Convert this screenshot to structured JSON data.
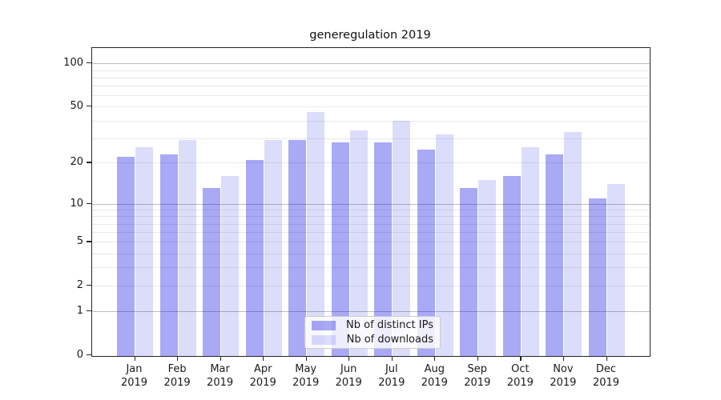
{
  "chart_data": {
    "type": "bar",
    "title": "generegulation 2019",
    "categories": [
      "Jan",
      "Feb",
      "Mar",
      "Apr",
      "May",
      "Jun",
      "Jul",
      "Aug",
      "Sep",
      "Oct",
      "Nov",
      "Dec"
    ],
    "category_year": "2019",
    "series": [
      {
        "name": "Nb of distinct IPs",
        "color": "rgba(10,10,230,0.35)",
        "values": [
          22,
          23,
          13,
          21,
          29,
          28,
          28,
          25,
          13,
          16,
          23,
          11
        ]
      },
      {
        "name": "Nb of downloads",
        "color": "rgba(10,10,230,0.14)",
        "values": [
          26,
          29,
          16,
          29,
          46,
          34,
          40,
          32,
          15,
          26,
          33,
          14
        ]
      }
    ],
    "y_axis": {
      "scale": "log10(1+x)",
      "tick_labels": [
        0,
        1,
        2,
        5,
        10,
        20,
        50,
        100
      ],
      "major_gridlines": [
        1,
        10,
        100
      ],
      "minor_gridlines": [
        2,
        3,
        4,
        5,
        6,
        7,
        8,
        9,
        20,
        30,
        40,
        50,
        60,
        70,
        80,
        90
      ],
      "range_top": 130
    },
    "legend": {
      "position": "bottom-center"
    },
    "grid": true
  },
  "colors": {
    "bar_distinct_ips": "rgba(10,10,230,0.35)",
    "bar_downloads": "rgba(10,10,230,0.14)",
    "major_grid": "#bdbdbd",
    "minor_grid": "#e9e9e9",
    "spine": "#262626",
    "background": "#ffffff"
  }
}
